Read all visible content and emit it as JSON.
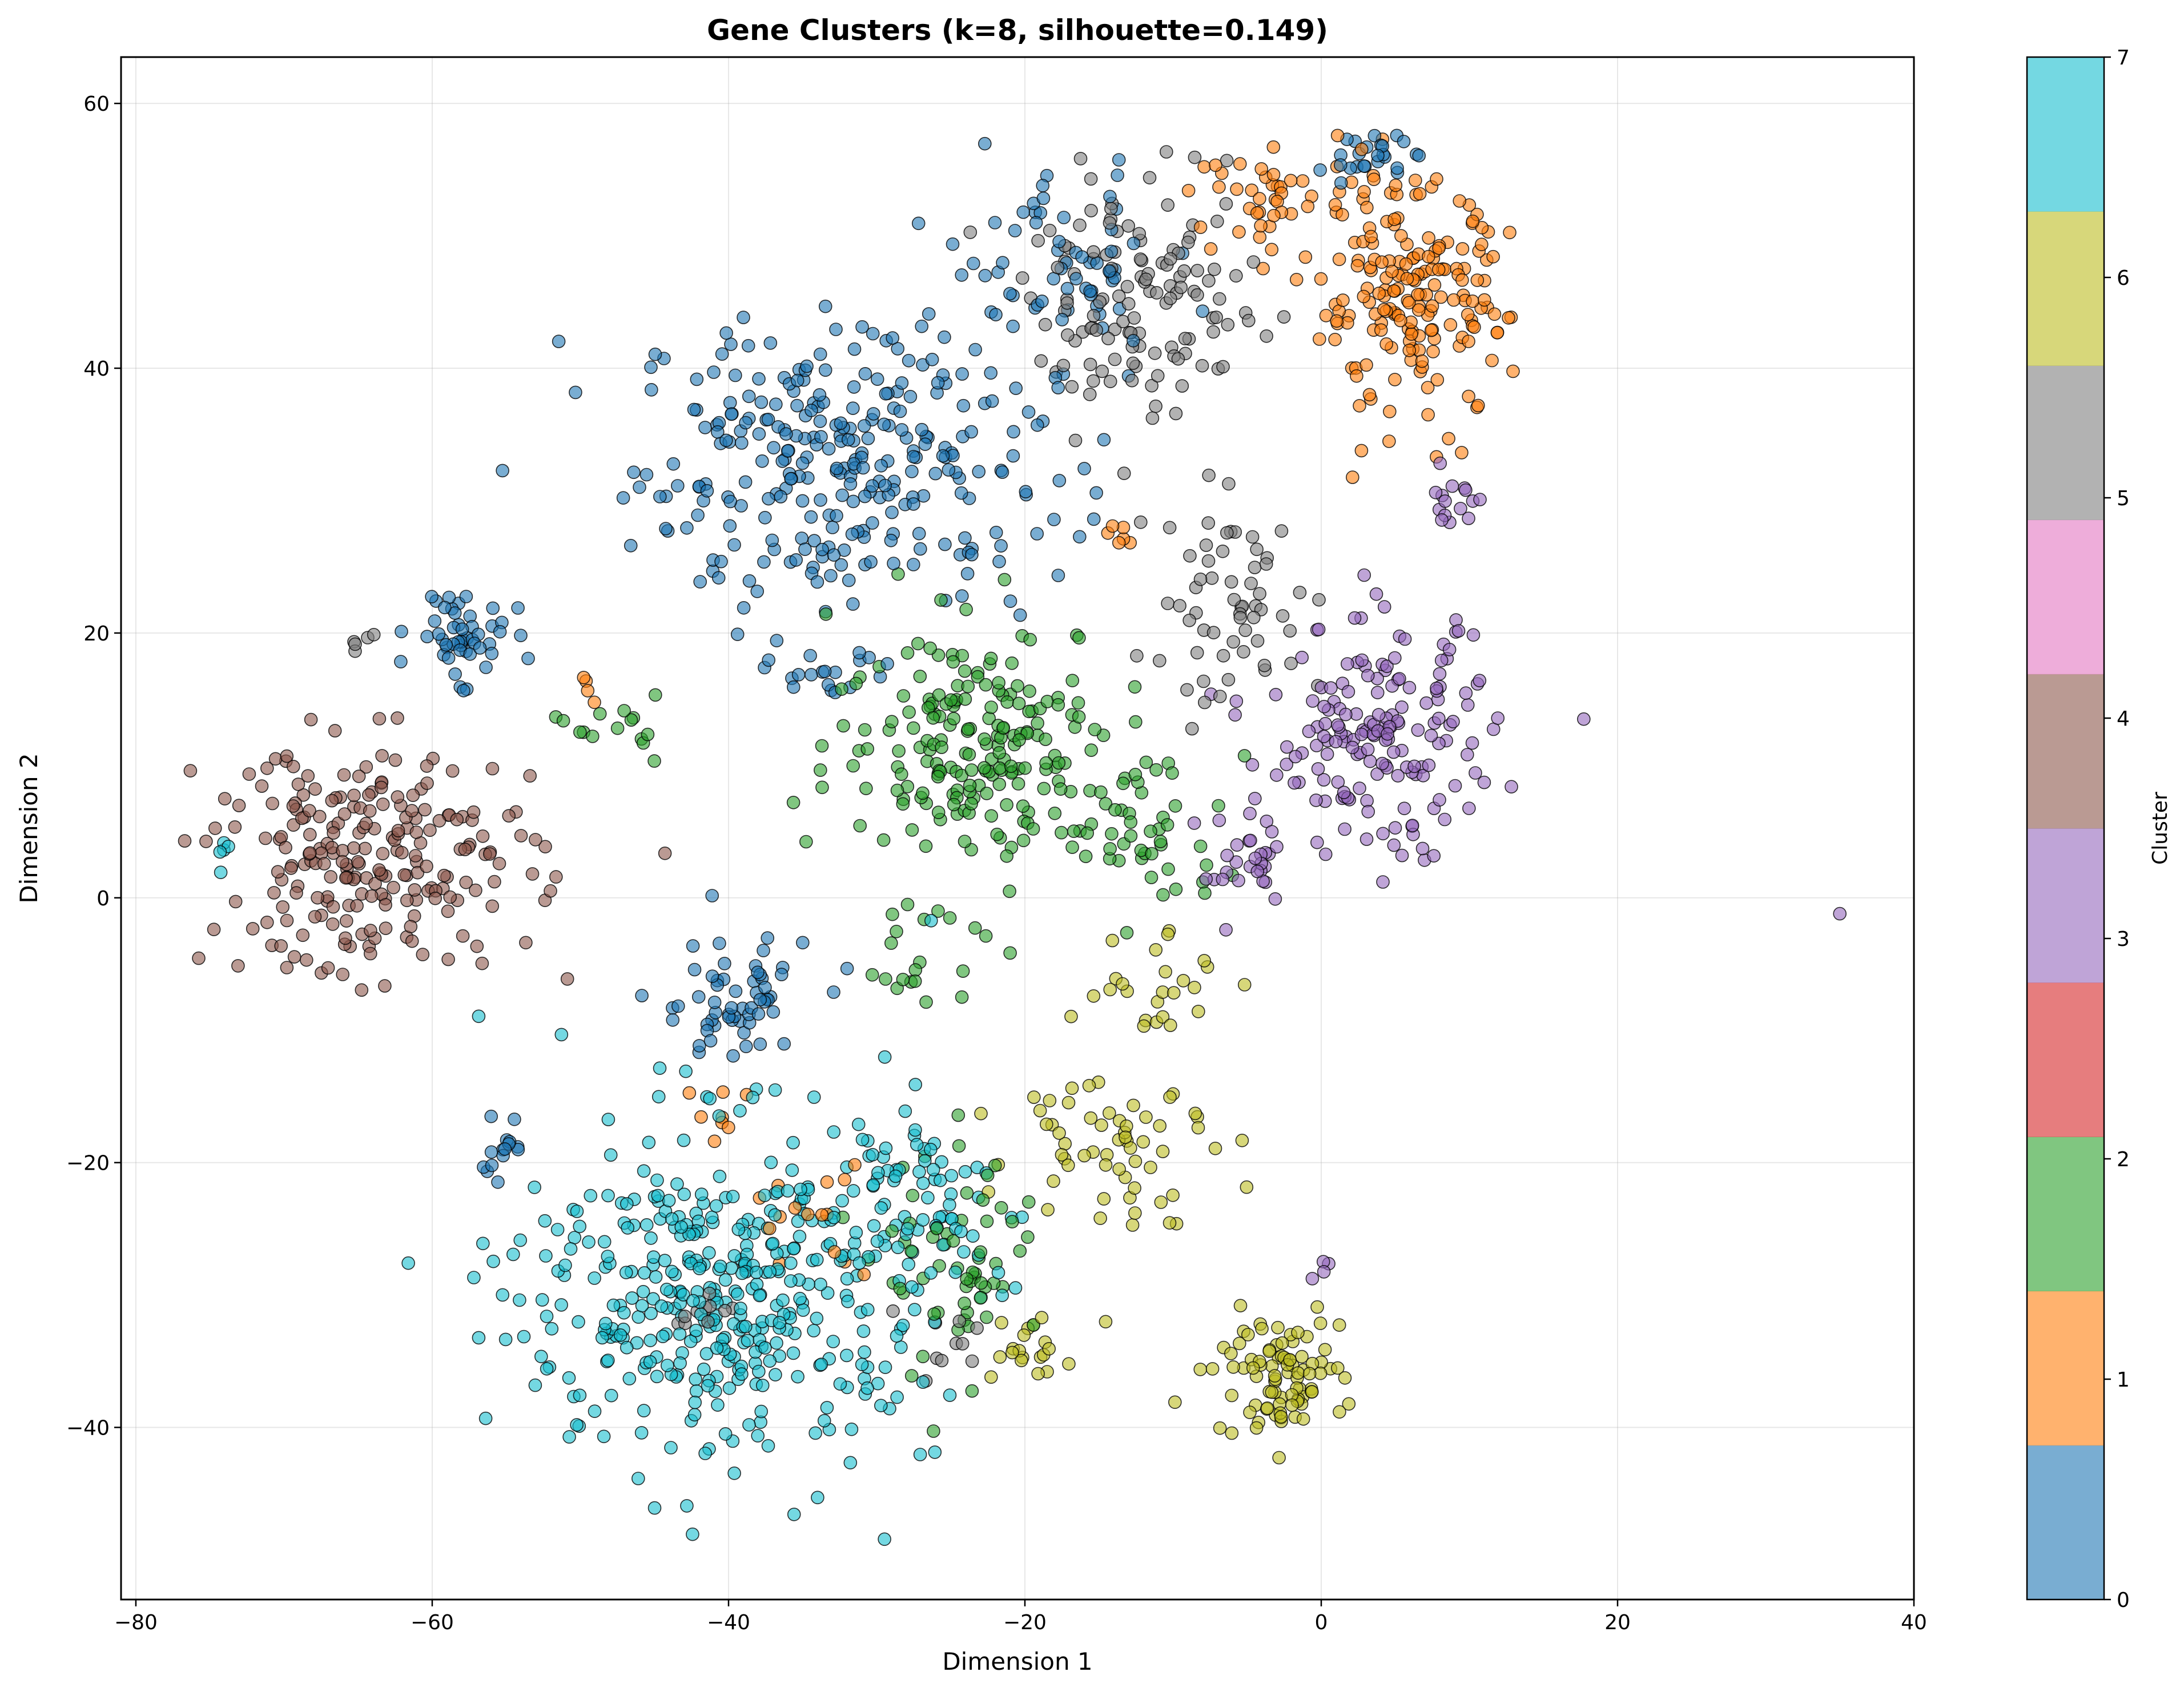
{
  "chart_data": {
    "type": "scatter",
    "title": "Gene Clusters (k=8, silhouette=0.149)",
    "xlabel": "Dimension 1",
    "ylabel": "Dimension 2",
    "xlim": [
      -81,
      40
    ],
    "ylim": [
      -53,
      63.5
    ],
    "xticks": [
      -80,
      -60,
      -40,
      -20,
      0,
      20,
      40
    ],
    "yticks": [
      -40,
      -20,
      0,
      20,
      40,
      60
    ],
    "grid": true,
    "colorbar": {
      "label": "Cluster",
      "ticks": [
        0,
        1,
        2,
        3,
        4,
        5,
        6,
        7
      ],
      "colors": [
        "#1f77b4",
        "#ff7f0e",
        "#2ca02c",
        "#d62728",
        "#9467bd",
        "#8c564b",
        "#e377c2",
        "#7f7f7f",
        "#bcbd22",
        "#17becf"
      ]
    },
    "series": [
      {
        "cluster": 0,
        "color": "#1f77b4",
        "regions": [
          {
            "cx": -32,
            "cy": 33,
            "rx": 13,
            "ry": 10,
            "n": 300
          },
          {
            "cx": -18,
            "cy": 48,
            "rx": 7,
            "ry": 6,
            "n": 60
          },
          {
            "cx": -58,
            "cy": 20,
            "rx": 3,
            "ry": 3,
            "n": 50
          },
          {
            "cx": -40,
            "cy": -8,
            "rx": 5,
            "ry": 5,
            "n": 60
          },
          {
            "cx": -55,
            "cy": -19,
            "rx": 2,
            "ry": 2,
            "n": 15
          },
          {
            "cx": 3,
            "cy": 56,
            "rx": 2.5,
            "ry": 1.5,
            "n": 25
          },
          {
            "cx": -33,
            "cy": 17,
            "rx": 4,
            "ry": 2,
            "n": 20
          }
        ]
      },
      {
        "cluster": 1,
        "color": "#ff7f0e",
        "regions": [
          {
            "cx": 6,
            "cy": 45,
            "rx": 6,
            "ry": 8,
            "n": 190
          },
          {
            "cx": -3,
            "cy": 53,
            "rx": 5,
            "ry": 3,
            "n": 40
          },
          {
            "cx": -35,
            "cy": -24,
            "rx": 4,
            "ry": 4,
            "n": 15
          },
          {
            "cx": -40,
            "cy": -16,
            "rx": 2,
            "ry": 3,
            "n": 8
          },
          {
            "cx": -50,
            "cy": 16,
            "rx": 1.5,
            "ry": 1.5,
            "n": 4
          },
          {
            "cx": -13,
            "cy": 27,
            "rx": 2,
            "ry": 1,
            "n": 6
          }
        ]
      },
      {
        "cluster": 2,
        "color": "#2ca02c",
        "regions": [
          {
            "cx": -23,
            "cy": 12,
            "rx": 9,
            "ry": 8,
            "n": 200
          },
          {
            "cx": -12,
            "cy": 5,
            "rx": 5,
            "ry": 6,
            "n": 50
          },
          {
            "cx": -24,
            "cy": -28,
            "rx": 5,
            "ry": 8,
            "n": 60
          },
          {
            "cx": -48,
            "cy": 13,
            "rx": 3,
            "ry": 2,
            "n": 15
          },
          {
            "cx": -27,
            "cy": -4,
            "rx": 4,
            "ry": 4,
            "n": 20
          }
        ]
      },
      {
        "cluster": 4,
        "color": "#9467bd",
        "regions": [
          {
            "cx": 4,
            "cy": 12,
            "rx": 7,
            "ry": 8,
            "n": 170
          },
          {
            "cx": -5,
            "cy": 2,
            "rx": 3,
            "ry": 4,
            "n": 30
          },
          {
            "cx": 9,
            "cy": 30,
            "rx": 2,
            "ry": 3,
            "n": 15
          },
          {
            "cx": 0,
            "cy": -28,
            "rx": 1,
            "ry": 1,
            "n": 4
          },
          {
            "cx": 35,
            "cy": -1.2,
            "rx": 0,
            "ry": 0,
            "n": 1
          }
        ]
      },
      {
        "cluster": 5,
        "color": "#8c564b",
        "regions": [
          {
            "cx": -64,
            "cy": 3,
            "rx": 10,
            "ry": 8,
            "n": 230
          }
        ]
      },
      {
        "cluster": 7,
        "color": "#7f7f7f",
        "regions": [
          {
            "cx": -12,
            "cy": 45,
            "rx": 7,
            "ry": 8,
            "n": 130
          },
          {
            "cx": -6,
            "cy": 22,
            "rx": 6,
            "ry": 7,
            "n": 60
          },
          {
            "cx": -42,
            "cy": -31,
            "rx": 2,
            "ry": 1.5,
            "n": 10
          },
          {
            "cx": -25,
            "cy": -34,
            "rx": 3,
            "ry": 4,
            "n": 10
          },
          {
            "cx": -64,
            "cy": 19,
            "rx": 2,
            "ry": 1,
            "n": 5
          }
        ]
      },
      {
        "cluster": 8,
        "color": "#bcbd22",
        "regions": [
          {
            "cx": -3,
            "cy": -36,
            "rx": 4,
            "ry": 4,
            "n": 90
          },
          {
            "cx": -14,
            "cy": -18,
            "rx": 6,
            "ry": 6,
            "n": 60
          },
          {
            "cx": -12,
            "cy": -6,
            "rx": 5,
            "ry": 4,
            "n": 25
          },
          {
            "cx": -20,
            "cy": -34,
            "rx": 3,
            "ry": 3,
            "n": 20
          }
        ]
      },
      {
        "cluster": 9,
        "color": "#17becf",
        "regions": [
          {
            "cx": -40,
            "cy": -30,
            "rx": 13,
            "ry": 12,
            "n": 430
          },
          {
            "cx": -27,
            "cy": -22,
            "rx": 5,
            "ry": 6,
            "n": 50
          },
          {
            "cx": -74,
            "cy": 3.5,
            "rx": 1,
            "ry": 1.5,
            "n": 5
          }
        ]
      }
    ]
  }
}
